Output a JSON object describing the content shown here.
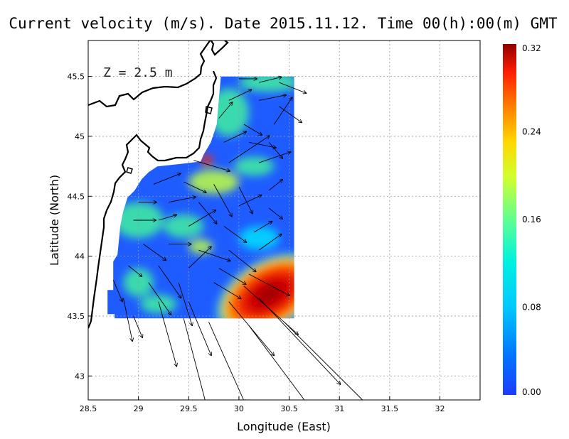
{
  "chart_data": {
    "type": "heatmap",
    "title": "Current velocity (m/s). Date 2015.11.12. Time 00(h):00(m) GMT",
    "xlabel": "Longitude (East)",
    "ylabel": "Latitude (North)",
    "annotation": "Z = 2.5 m",
    "xlim": [
      28.5,
      32.4
    ],
    "ylim": [
      42.8,
      45.8
    ],
    "x_ticks": [
      "28.5",
      "29",
      "29.5",
      "30",
      "30.5",
      "31",
      "31.5",
      "32"
    ],
    "x_tick_values": [
      28.5,
      29,
      29.5,
      30,
      30.5,
      31,
      31.5,
      32
    ],
    "y_ticks": [
      "43",
      "43.5",
      "44",
      "44.5",
      "45",
      "45.5"
    ],
    "y_tick_values": [
      43,
      43.5,
      44,
      44.5,
      45,
      45.5
    ],
    "grid": true,
    "colorbar": {
      "min": 0.0,
      "max": 0.32,
      "ticks": [
        "0.00",
        "0.08",
        "0.16",
        "0.24",
        "0.32"
      ],
      "tick_values": [
        0.0,
        0.08,
        0.16,
        0.24,
        0.32
      ],
      "colormap": [
        "#1e3cff",
        "#00a0ff",
        "#00e0ff",
        "#40f0a0",
        "#c0ff40",
        "#ffe000",
        "#ff8c00",
        "#ff2800",
        "#a00000"
      ]
    },
    "domain": {
      "lon": [
        28.65,
        30.55
      ],
      "lat": [
        43.48,
        45.5
      ]
    },
    "hotspots": [
      {
        "lon": 30.3,
        "lat": 43.68,
        "value": 0.32,
        "rx": 0.6,
        "ry": 0.3
      },
      {
        "lon": 29.68,
        "lat": 44.8,
        "value": 0.26,
        "rx": 0.06,
        "ry": 0.05
      },
      {
        "lon": 29.75,
        "lat": 44.62,
        "value": 0.16,
        "rx": 0.25,
        "ry": 0.1
      },
      {
        "lon": 29.62,
        "lat": 44.08,
        "value": 0.17,
        "rx": 0.12,
        "ry": 0.06
      },
      {
        "lon": 29.0,
        "lat": 43.78,
        "value": 0.13,
        "rx": 0.15,
        "ry": 0.12
      },
      {
        "lon": 29.45,
        "lat": 44.25,
        "value": 0.12,
        "rx": 0.2,
        "ry": 0.1
      },
      {
        "lon": 29.0,
        "lat": 44.3,
        "value": 0.11,
        "rx": 0.25,
        "ry": 0.15
      },
      {
        "lon": 29.9,
        "lat": 45.2,
        "value": 0.11,
        "rx": 0.2,
        "ry": 0.2
      },
      {
        "lon": 30.3,
        "lat": 45.45,
        "value": 0.1,
        "rx": 0.3,
        "ry": 0.08
      },
      {
        "lon": 30.15,
        "lat": 44.75,
        "value": 0.1,
        "rx": 0.2,
        "ry": 0.08
      },
      {
        "lon": 30.2,
        "lat": 44.15,
        "value": 0.09,
        "rx": 0.2,
        "ry": 0.1
      },
      {
        "lon": 29.2,
        "lat": 43.6,
        "value": 0.12,
        "rx": 0.18,
        "ry": 0.08
      }
    ],
    "vectors": {
      "units": "m/s",
      "items": [
        [
          30.0,
          45.48,
          0.04,
          0.0
        ],
        [
          30.2,
          45.45,
          0.05,
          0.01
        ],
        [
          30.4,
          45.45,
          0.06,
          -0.02
        ],
        [
          29.9,
          45.3,
          0.05,
          0.02
        ],
        [
          30.2,
          45.3,
          0.06,
          0.01
        ],
        [
          30.4,
          45.25,
          0.05,
          -0.03
        ],
        [
          29.8,
          45.15,
          0.03,
          0.03
        ],
        [
          30.05,
          45.1,
          0.04,
          -0.02
        ],
        [
          30.35,
          45.1,
          0.04,
          0.05
        ],
        [
          29.85,
          44.95,
          0.05,
          0.02
        ],
        [
          30.1,
          44.95,
          0.06,
          -0.01
        ],
        [
          30.3,
          44.95,
          0.03,
          -0.03
        ],
        [
          29.55,
          44.8,
          0.08,
          -0.02
        ],
        [
          29.9,
          44.78,
          0.09,
          0.05
        ],
        [
          30.2,
          44.78,
          0.07,
          0.02
        ],
        [
          29.15,
          44.6,
          0.06,
          0.02
        ],
        [
          29.45,
          44.62,
          0.05,
          -0.02
        ],
        [
          29.75,
          44.6,
          0.04,
          -0.06
        ],
        [
          30.0,
          44.58,
          0.03,
          -0.05
        ],
        [
          30.3,
          44.55,
          0.03,
          0.02
        ],
        [
          29.0,
          44.45,
          0.04,
          0.0
        ],
        [
          29.3,
          44.45,
          0.06,
          0.01
        ],
        [
          29.6,
          44.45,
          0.04,
          -0.04
        ],
        [
          30.0,
          44.42,
          0.05,
          0.02
        ],
        [
          30.3,
          44.4,
          0.03,
          -0.02
        ],
        [
          28.95,
          44.3,
          0.05,
          0.0
        ],
        [
          29.2,
          44.3,
          0.04,
          0.01
        ],
        [
          29.5,
          44.25,
          0.06,
          0.03
        ],
        [
          29.85,
          44.25,
          0.05,
          -0.03
        ],
        [
          30.15,
          44.2,
          0.04,
          0.02
        ],
        [
          29.05,
          44.1,
          0.05,
          -0.03
        ],
        [
          29.3,
          44.1,
          0.05,
          0.0
        ],
        [
          29.6,
          44.05,
          0.07,
          -0.02
        ],
        [
          29.9,
          44.05,
          0.06,
          -0.04
        ],
        [
          30.2,
          44.05,
          0.05,
          0.03
        ],
        [
          28.9,
          43.92,
          0.03,
          -0.02
        ],
        [
          29.2,
          43.92,
          0.05,
          -0.06
        ],
        [
          29.5,
          43.9,
          0.05,
          0.04
        ],
        [
          29.8,
          43.9,
          0.06,
          -0.03
        ],
        [
          30.1,
          43.85,
          0.09,
          -0.04
        ],
        [
          28.75,
          43.8,
          0.02,
          -0.04
        ],
        [
          29.1,
          43.78,
          0.05,
          -0.06
        ],
        [
          29.4,
          43.78,
          0.03,
          -0.08
        ],
        [
          29.75,
          43.78,
          0.06,
          -0.03
        ],
        [
          30.05,
          43.75,
          0.12,
          -0.09
        ],
        [
          28.85,
          43.65,
          0.02,
          -0.08
        ],
        [
          29.2,
          43.62,
          0.04,
          -0.12
        ],
        [
          29.5,
          43.62,
          0.05,
          -0.1
        ],
        [
          29.9,
          43.62,
          0.1,
          -0.1
        ],
        [
          30.2,
          43.65,
          0.18,
          -0.16
        ],
        [
          28.95,
          43.5,
          0.02,
          -0.04
        ],
        [
          29.45,
          43.48,
          0.05,
          -0.16
        ],
        [
          29.7,
          43.45,
          0.08,
          -0.15
        ],
        [
          30.1,
          43.42,
          0.16,
          -0.18
        ],
        [
          30.45,
          43.45,
          0.24,
          -0.2
        ]
      ]
    }
  }
}
